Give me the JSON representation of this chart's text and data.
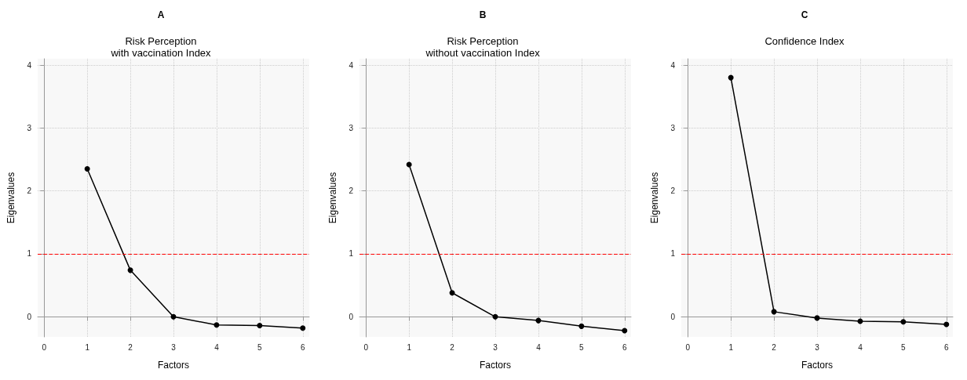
{
  "chart_data": [
    {
      "type": "line",
      "title": "A",
      "subtitle": "Risk Perception\nwith vaccination Index",
      "xlabel": "Factors",
      "ylabel": "Eigenvalues",
      "x": [
        1,
        2,
        3,
        4,
        5,
        6
      ],
      "series": [
        {
          "color": "#000000",
          "values": [
            2.35,
            0.74,
            0,
            -0.13,
            -0.14,
            -0.18
          ]
        }
      ],
      "xlim": [
        -0.15,
        6.15
      ],
      "xticks": [
        0,
        1,
        2,
        3,
        4,
        5,
        6
      ],
      "ylim": [
        -0.32,
        4.1
      ],
      "yticks": [
        0,
        1,
        2,
        3,
        4
      ],
      "grid": true,
      "marker": "circle",
      "line_style": "solid",
      "ref_lines": [
        {
          "axis": "y",
          "value": 1,
          "color": "#ff0000",
          "line_style": "dashed"
        }
      ]
    },
    {
      "type": "line",
      "title": "B",
      "subtitle": "Risk Perception\nwithout vaccination Index",
      "xlabel": "Factors",
      "ylabel": "Eigenvalues",
      "x": [
        1,
        2,
        3,
        4,
        5,
        6
      ],
      "series": [
        {
          "color": "#000000",
          "values": [
            2.42,
            0.38,
            0,
            -0.06,
            -0.15,
            -0.22
          ]
        }
      ],
      "xlim": [
        -0.15,
        6.15
      ],
      "xticks": [
        0,
        1,
        2,
        3,
        4,
        5,
        6
      ],
      "ylim": [
        -0.32,
        4.1
      ],
      "yticks": [
        0,
        1,
        2,
        3,
        4
      ],
      "grid": true,
      "marker": "circle",
      "line_style": "solid",
      "ref_lines": [
        {
          "axis": "y",
          "value": 1,
          "color": "#ff0000",
          "line_style": "dashed"
        }
      ]
    },
    {
      "type": "line",
      "title": "C",
      "subtitle": "Confidence Index",
      "xlabel": "Factors",
      "ylabel": "Eigenvalues",
      "x": [
        1,
        2,
        3,
        4,
        5,
        6
      ],
      "series": [
        {
          "color": "#000000",
          "values": [
            3.8,
            0.08,
            -0.02,
            -0.07,
            -0.08,
            -0.12
          ]
        }
      ],
      "xlim": [
        -0.15,
        6.15
      ],
      "xticks": [
        0,
        1,
        2,
        3,
        4,
        5,
        6
      ],
      "ylim": [
        -0.32,
        4.1
      ],
      "yticks": [
        0,
        1,
        2,
        3,
        4
      ],
      "grid": true,
      "marker": "circle",
      "line_style": "solid",
      "ref_lines": [
        {
          "axis": "y",
          "value": 1,
          "color": "#ff0000",
          "line_style": "dashed"
        }
      ]
    }
  ]
}
